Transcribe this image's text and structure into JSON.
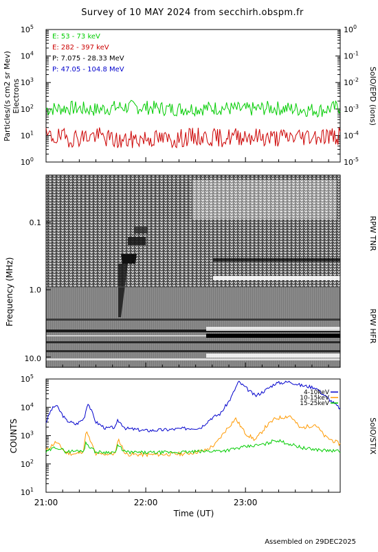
{
  "title": "Survey of 10 MAY 2024 from secchirh.obspm.fr",
  "footer": "Assembled on 29DEC2025",
  "chart_data": [
    {
      "type": "line",
      "panel": "epd",
      "ylabel": "Particles/(s cm2 sr Mev)",
      "ylabel2": "Electrons",
      "right_label": "SoIO/EPD (ions)",
      "y_log": true,
      "ylim": [
        1,
        100000
      ],
      "y_ticks": [
        {
          "base": "10",
          "exp": "0"
        },
        {
          "base": "10",
          "exp": "1"
        },
        {
          "base": "10",
          "exp": "2"
        },
        {
          "base": "10",
          "exp": "3"
        },
        {
          "base": "10",
          "exp": "4"
        },
        {
          "base": "10",
          "exp": "5"
        }
      ],
      "y2_log": true,
      "y2lim": [
        1e-05,
        1
      ],
      "y2_ticks": [
        {
          "base": "10",
          "exp": "-5"
        },
        {
          "base": "10",
          "exp": "-4"
        },
        {
          "base": "10",
          "exp": "-3"
        },
        {
          "base": "10",
          "exp": "-2"
        },
        {
          "base": "10",
          "exp": "-1"
        },
        {
          "base": "10",
          "exp": "0"
        }
      ],
      "legend": [
        {
          "text": "E: 53 - 73 keV",
          "color": "#00cc00"
        },
        {
          "text": "E: 282 - 397 keV",
          "color": "#cc0000"
        },
        {
          "text": "P: 7.075 - 28.33 MeV",
          "color": "#000000"
        },
        {
          "text": "P: 47.05 - 104.8 MeV",
          "color": "#0000cc"
        }
      ],
      "xlim": [
        21.0,
        23.95
      ],
      "series": [
        {
          "name": "E: 53 - 73 keV",
          "color": "#00cc00",
          "x": [
            21.0,
            21.25,
            21.5,
            21.75,
            22.0,
            22.25,
            22.5,
            22.75,
            23.0,
            23.25,
            23.5,
            23.75,
            23.95
          ],
          "y": [
            100,
            110,
            95,
            120,
            115,
            100,
            105,
            110,
            95,
            110,
            100,
            90,
            120
          ]
        },
        {
          "name": "E: 282 - 397 keV",
          "color": "#cc0000",
          "x": [
            21.0,
            21.25,
            21.5,
            21.75,
            22.0,
            22.25,
            22.5,
            22.75,
            23.0,
            23.25,
            23.5,
            23.75,
            23.95
          ],
          "y": [
            9,
            8,
            10,
            6,
            8,
            7,
            9,
            8,
            10,
            8,
            9,
            10,
            9
          ]
        }
      ]
    },
    {
      "type": "heatmap",
      "panel": "rpw",
      "ylabel": "Frequency (MHz)",
      "y_log": true,
      "y_reversed": true,
      "ylim": [
        0.02,
        13
      ],
      "y_ticks": [
        "0.1",
        "1.0",
        "10.0"
      ],
      "right_labels": [
        "RPW TNR",
        "RPW HFR"
      ],
      "xlim": [
        21.0,
        23.95
      ]
    },
    {
      "type": "line",
      "panel": "stix",
      "ylabel": "COUNTS",
      "right_label": "SoIO/STIX",
      "y_log": true,
      "ylim": [
        10,
        100000
      ],
      "y_ticks": [
        {
          "base": "10",
          "exp": "1"
        },
        {
          "base": "10",
          "exp": "2"
        },
        {
          "base": "10",
          "exp": "3"
        },
        {
          "base": "10",
          "exp": "4"
        },
        {
          "base": "10",
          "exp": "5"
        }
      ],
      "xlabel": "Time (UT)",
      "xlim": [
        21.0,
        23.95
      ],
      "x_ticks": [
        {
          "value": 21.0,
          "label": "21:00"
        },
        {
          "value": 22.0,
          "label": "22:00"
        },
        {
          "value": 23.0,
          "label": "23:00"
        }
      ],
      "series": [
        {
          "name": "4-10keV",
          "color": "#0000cc",
          "x": [
            21.0,
            21.05,
            21.1,
            21.2,
            21.3,
            21.38,
            21.42,
            21.5,
            21.6,
            21.7,
            21.72,
            21.8,
            22.0,
            22.2,
            22.4,
            22.55,
            22.65,
            22.75,
            22.85,
            22.93,
            23.0,
            23.1,
            23.2,
            23.3,
            23.45,
            23.55,
            23.7,
            23.8,
            23.95
          ],
          "y": [
            3000,
            8000,
            12000,
            3500,
            2500,
            4000,
            15000,
            3000,
            1800,
            2000,
            3500,
            1800,
            1500,
            1600,
            1800,
            1900,
            4000,
            6000,
            20000,
            80000,
            50000,
            25000,
            40000,
            70000,
            80000,
            60000,
            50000,
            25000,
            9000
          ]
        },
        {
          "name": "10-15keV",
          "color": "#ff9900",
          "x": [
            21.0,
            21.1,
            21.2,
            21.3,
            21.38,
            21.4,
            21.5,
            21.7,
            21.72,
            21.8,
            22.0,
            22.4,
            22.6,
            22.7,
            22.8,
            22.9,
            23.0,
            23.1,
            23.2,
            23.3,
            23.45,
            23.55,
            23.7,
            23.8,
            23.95
          ],
          "y": [
            300,
            600,
            250,
            220,
            300,
            1500,
            220,
            230,
            800,
            220,
            210,
            230,
            300,
            500,
            1500,
            4000,
            1200,
            700,
            2000,
            4000,
            5000,
            1800,
            2500,
            900,
            500
          ]
        },
        {
          "name": "15-25keV",
          "color": "#00cc00",
          "x": [
            21.0,
            21.1,
            21.2,
            21.38,
            21.4,
            21.5,
            21.7,
            21.72,
            21.8,
            22.0,
            22.4,
            22.6,
            22.8,
            23.0,
            23.2,
            23.3,
            23.45,
            23.6,
            23.8,
            23.95
          ],
          "y": [
            260,
            400,
            270,
            300,
            550,
            260,
            260,
            450,
            260,
            250,
            260,
            280,
            300,
            400,
            500,
            700,
            500,
            350,
            300,
            280
          ]
        }
      ]
    }
  ]
}
